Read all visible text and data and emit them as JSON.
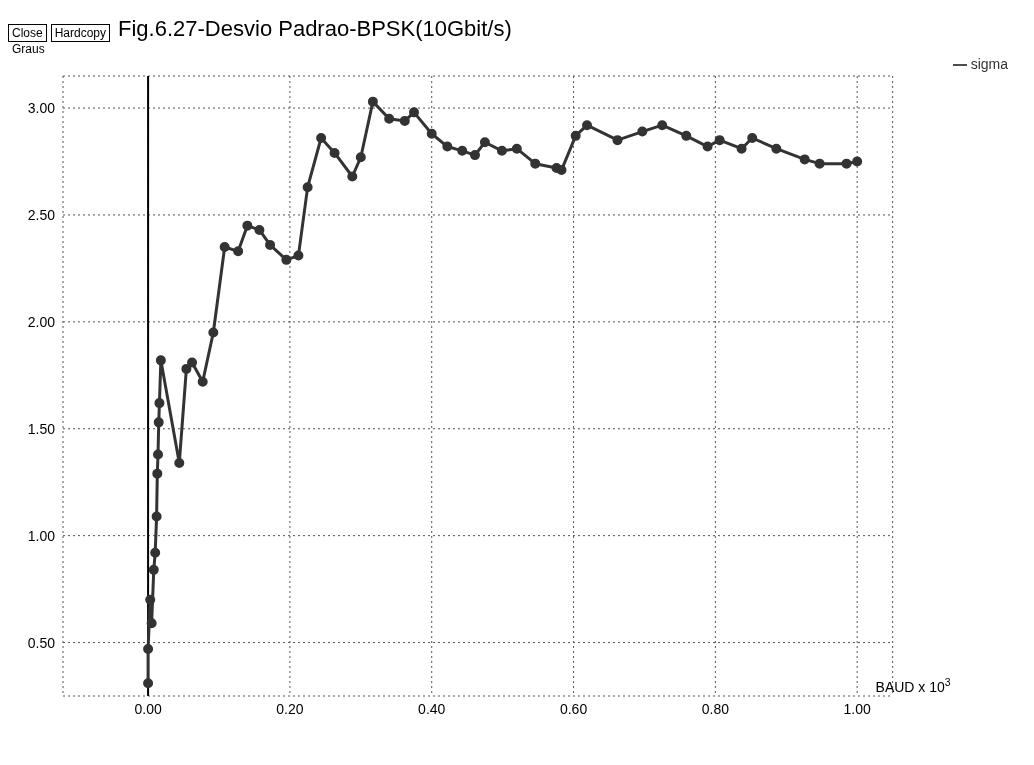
{
  "chart_data": {
    "type": "line",
    "title": "Fig.6.27-Desvio Padrao-BPSK(10Gbit/s)",
    "ylabel": "Graus",
    "xlabel": "BAUD x 10$^{3}$",
    "annotations": [
      "Close",
      "Hardcopy"
    ],
    "x": [
      0.0,
      0.0,
      0.003,
      0.005,
      0.008,
      0.01,
      0.012,
      0.013,
      0.014,
      0.015,
      0.016,
      0.018,
      0.044,
      0.054,
      0.062,
      0.077,
      0.092,
      0.108,
      0.127,
      0.14,
      0.157,
      0.172,
      0.195,
      0.212,
      0.225,
      0.244,
      0.263,
      0.288,
      0.3,
      0.317,
      0.34,
      0.362,
      0.375,
      0.4,
      0.422,
      0.443,
      0.461,
      0.475,
      0.499,
      0.52,
      0.546,
      0.576,
      0.583,
      0.603,
      0.619,
      0.662,
      0.697,
      0.725,
      0.759,
      0.789,
      0.806,
      0.837,
      0.852,
      0.886,
      0.926,
      0.947,
      0.985,
      1.0
    ],
    "series": [
      {
        "name": "sigma",
        "color": "#333333",
        "values": [
          0.31,
          0.47,
          0.7,
          0.59,
          0.84,
          0.92,
          1.09,
          1.29,
          1.38,
          1.53,
          1.62,
          1.82,
          1.34,
          1.78,
          1.81,
          1.72,
          1.95,
          2.35,
          2.33,
          2.45,
          2.43,
          2.36,
          2.29,
          2.31,
          2.63,
          2.86,
          2.79,
          2.68,
          2.77,
          3.03,
          2.95,
          2.94,
          2.98,
          2.88,
          2.82,
          2.8,
          2.78,
          2.84,
          2.8,
          2.81,
          2.74,
          2.72,
          2.71,
          2.87,
          2.92,
          2.85,
          2.89,
          2.92,
          2.87,
          2.82,
          2.85,
          2.81,
          2.86,
          2.81,
          2.76,
          2.74,
          2.74,
          2.75
        ]
      }
    ],
    "xlim": [
      -0.12,
      1.05
    ],
    "xticks": [
      {
        "value": 0,
        "label": "0.00"
      },
      {
        "value": 0.2,
        "label": "0.20"
      },
      {
        "value": 0.4,
        "label": "0.40"
      },
      {
        "value": 0.6,
        "label": "0.60"
      },
      {
        "value": 0.8,
        "label": "0.80"
      },
      {
        "value": 1,
        "label": "1.00"
      }
    ],
    "ylim": [
      0.25,
      3.15
    ],
    "yticks": [
      {
        "value": 0.5,
        "label": "0.50"
      },
      {
        "value": 1,
        "label": "1.00"
      },
      {
        "value": 1.5,
        "label": "1.50"
      },
      {
        "value": 2,
        "label": "2.00"
      },
      {
        "value": 2.5,
        "label": "2.50"
      },
      {
        "value": 3,
        "label": "3.00"
      }
    ],
    "ref_lines": [
      {
        "axis": "x",
        "value": 0,
        "color": "#000000"
      }
    ],
    "grid": true,
    "legend": "top right",
    "marker": "circle",
    "line_style": "solid"
  }
}
